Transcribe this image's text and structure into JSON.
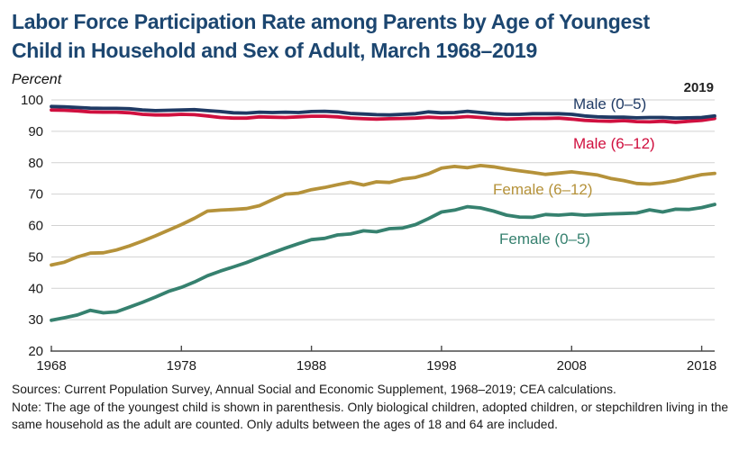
{
  "header": {
    "title_line1": "Labor Force Participation Rate among Parents by Age of Youngest",
    "title_line2": "Child in Household and Sex of Adult, March 1968–2019"
  },
  "chart": {
    "y_axis_unit": "Percent",
    "end_year_label": "2019"
  },
  "chart_data": {
    "type": "line",
    "title": "Labor Force Participation Rate among Parents by Age of Youngest Child in Household and Sex of Adult, March 1968–2019",
    "ylabel": "Percent",
    "xlabel": "",
    "ylim": [
      20,
      100
    ],
    "yticks": [
      20,
      30,
      40,
      50,
      60,
      70,
      80,
      90,
      100
    ],
    "xticks": [
      1968,
      1978,
      1988,
      1998,
      2008,
      2018
    ],
    "grid": true,
    "legend_position": "inline-right-of-lines",
    "axis_color": "#4a4a4a",
    "grid_color": "#d2d2d2",
    "x": [
      1968,
      1969,
      1970,
      1971,
      1972,
      1973,
      1974,
      1975,
      1976,
      1977,
      1978,
      1979,
      1980,
      1981,
      1982,
      1983,
      1984,
      1985,
      1986,
      1987,
      1988,
      1989,
      1990,
      1991,
      1992,
      1993,
      1994,
      1995,
      1996,
      1997,
      1998,
      1999,
      2000,
      2001,
      2002,
      2003,
      2004,
      2005,
      2006,
      2007,
      2008,
      2009,
      2010,
      2011,
      2012,
      2013,
      2014,
      2015,
      2016,
      2017,
      2018,
      2019
    ],
    "series": [
      {
        "name": "Male (0–5)",
        "color": "#1f3a64",
        "values": [
          97.9,
          97.8,
          97.6,
          97.4,
          97.3,
          97.3,
          97.2,
          96.8,
          96.6,
          96.7,
          96.8,
          96.9,
          96.6,
          96.3,
          95.9,
          95.8,
          96.1,
          96.0,
          96.1,
          96.0,
          96.3,
          96.4,
          96.2,
          95.7,
          95.5,
          95.3,
          95.2,
          95.4,
          95.6,
          96.2,
          95.9,
          96.0,
          96.4,
          96.0,
          95.6,
          95.4,
          95.4,
          95.6,
          95.6,
          95.6,
          95.4,
          94.9,
          94.6,
          94.5,
          94.5,
          94.3,
          94.4,
          94.4,
          94.2,
          94.3,
          94.4,
          94.9
        ]
      },
      {
        "name": "Male (6–12)",
        "color": "#d0103f",
        "values": [
          96.8,
          96.7,
          96.5,
          96.2,
          96.1,
          96.1,
          95.9,
          95.4,
          95.2,
          95.2,
          95.4,
          95.3,
          94.9,
          94.4,
          94.2,
          94.2,
          94.6,
          94.5,
          94.4,
          94.6,
          94.8,
          94.8,
          94.6,
          94.2,
          94.0,
          93.9,
          94.0,
          94.1,
          94.2,
          94.5,
          94.3,
          94.4,
          94.7,
          94.4,
          94.1,
          93.9,
          94.0,
          94.1,
          94.1,
          94.2,
          93.9,
          93.5,
          93.3,
          93.2,
          93.4,
          93.1,
          93.0,
          93.2,
          92.9,
          93.2,
          93.5,
          94.1
        ]
      },
      {
        "name": "Female (6–12)",
        "color": "#b5923a",
        "values": [
          47.4,
          48.3,
          50.0,
          51.2,
          51.3,
          52.2,
          53.5,
          55.0,
          56.7,
          58.5,
          60.3,
          62.3,
          64.6,
          64.9,
          65.1,
          65.4,
          66.3,
          68.2,
          70.0,
          70.3,
          71.4,
          72.1,
          73.0,
          73.8,
          72.9,
          73.9,
          73.7,
          74.8,
          75.3,
          76.5,
          78.3,
          78.8,
          78.4,
          79.1,
          78.7,
          78.0,
          77.4,
          76.9,
          76.3,
          76.7,
          77.1,
          76.6,
          76.1,
          75.0,
          74.3,
          73.4,
          73.2,
          73.6,
          74.3,
          75.3,
          76.2,
          76.6
        ]
      },
      {
        "name": "Female (0–5)",
        "color": "#36816f",
        "values": [
          29.8,
          30.6,
          31.5,
          33.0,
          32.2,
          32.5,
          34.0,
          35.5,
          37.2,
          39.0,
          40.3,
          42.0,
          44.0,
          45.5,
          46.8,
          48.2,
          49.8,
          51.3,
          52.8,
          54.2,
          55.5,
          55.9,
          57.0,
          57.3,
          58.3,
          58.0,
          59.0,
          59.2,
          60.3,
          62.2,
          64.3,
          64.9,
          66.0,
          65.6,
          64.6,
          63.3,
          62.7,
          62.6,
          63.5,
          63.3,
          63.6,
          63.3,
          63.5,
          63.7,
          63.8,
          64.0,
          65.0,
          64.3,
          65.2,
          65.1,
          65.7,
          66.7
        ]
      }
    ]
  },
  "footer": {
    "sources": "Sources: Current Population Survey, Annual Social and Economic Supplement, 1968–2019; CEA calculations.",
    "note": "Note: The age of  the youngest child is shown in parenthesis. Only biological children, adopted children, or stepchildren living in the same household as the adult are counted. Only adults between the ages of 18 and 64 are included."
  }
}
